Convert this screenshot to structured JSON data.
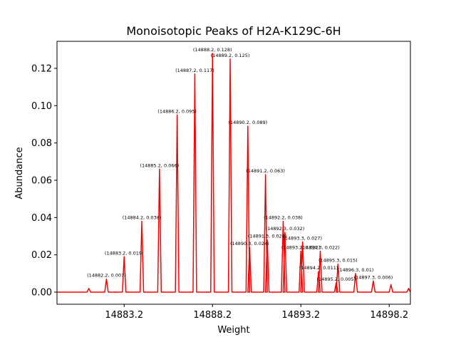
{
  "chart_data": {
    "type": "line",
    "title": "Monoisotopic Peaks of H2A-K129C-6H",
    "xlabel": "Weight",
    "ylabel": "Abundance",
    "xlim": [
      14879.4,
      14899.4
    ],
    "ylim": [
      -0.0065,
      0.1345
    ],
    "x_ticks": [
      14883.2,
      14888.2,
      14893.2,
      14898.2
    ],
    "x_tick_labels": [
      "14883.2",
      "14888.2",
      "14893.2",
      "14898.2"
    ],
    "y_ticks": [
      0.0,
      0.02,
      0.04,
      0.06,
      0.08,
      0.1,
      0.12
    ],
    "y_tick_labels": [
      "0.00",
      "0.02",
      "0.04",
      "0.06",
      "0.08",
      "0.10",
      "0.12"
    ],
    "grid": false,
    "line_color": "#ff0000",
    "peak_halfwidth": 0.1,
    "series": [
      {
        "peaks": [
          {
            "x": 14881.2,
            "y": 0.002
          },
          {
            "x": 14882.2,
            "y": 0.007
          },
          {
            "x": 14883.2,
            "y": 0.019
          },
          {
            "x": 14884.2,
            "y": 0.038
          },
          {
            "x": 14885.2,
            "y": 0.066
          },
          {
            "x": 14886.2,
            "y": 0.095
          },
          {
            "x": 14887.2,
            "y": 0.117
          },
          {
            "x": 14888.2,
            "y": 0.128
          },
          {
            "x": 14889.2,
            "y": 0.125
          },
          {
            "x": 14890.2,
            "y": 0.089
          },
          {
            "x": 14890.3,
            "y": 0.024
          },
          {
            "x": 14891.2,
            "y": 0.063
          },
          {
            "x": 14891.3,
            "y": 0.028
          },
          {
            "x": 14892.2,
            "y": 0.038
          },
          {
            "x": 14892.3,
            "y": 0.032
          },
          {
            "x": 14893.2,
            "y": 0.022
          },
          {
            "x": 14893.3,
            "y": 0.027
          },
          {
            "x": 14894.2,
            "y": 0.011
          },
          {
            "x": 14894.3,
            "y": 0.022
          },
          {
            "x": 14895.2,
            "y": 0.005
          },
          {
            "x": 14895.3,
            "y": 0.015
          },
          {
            "x": 14896.3,
            "y": 0.01
          },
          {
            "x": 14897.3,
            "y": 0.006
          },
          {
            "x": 14898.3,
            "y": 0.004
          },
          {
            "x": 14899.3,
            "y": 0.002
          }
        ]
      }
    ],
    "annotations": [
      {
        "text": "(14882.2, 0.007)",
        "x": 14882.2,
        "y": 0.007
      },
      {
        "text": "(14883.2, 0.019)",
        "x": 14883.2,
        "y": 0.019
      },
      {
        "text": "(14884.2, 0.038)",
        "x": 14884.2,
        "y": 0.038
      },
      {
        "text": "(14885.2, 0.066)",
        "x": 14885.2,
        "y": 0.066
      },
      {
        "text": "(14886.2, 0.095)",
        "x": 14886.2,
        "y": 0.095
      },
      {
        "text": "(14887.2, 0.117)",
        "x": 14887.2,
        "y": 0.117
      },
      {
        "text": "(14888.2, 0.128)",
        "x": 14888.2,
        "y": 0.128
      },
      {
        "text": "(14889.2, 0.125)",
        "x": 14889.2,
        "y": 0.125
      },
      {
        "text": "(14890.2, 0.089)",
        "x": 14890.2,
        "y": 0.089
      },
      {
        "text": "(14890.3, 0.024)",
        "x": 14890.3,
        "y": 0.024
      },
      {
        "text": "(14891.2, 0.063)",
        "x": 14891.2,
        "y": 0.063
      },
      {
        "text": "(14891.3, 0.028)",
        "x": 14891.3,
        "y": 0.028
      },
      {
        "text": "(14892.2, 0.038)",
        "x": 14892.2,
        "y": 0.038
      },
      {
        "text": "(14892.3, 0.032)",
        "x": 14892.3,
        "y": 0.032
      },
      {
        "text": "(14893.2, 0.022)",
        "x": 14893.2,
        "y": 0.022
      },
      {
        "text": "(14893.3, 0.027)",
        "x": 14893.3,
        "y": 0.027
      },
      {
        "text": "(14894.2, 0.011)",
        "x": 14894.2,
        "y": 0.011
      },
      {
        "text": "(14894.3, 0.022)",
        "x": 14894.3,
        "y": 0.022
      },
      {
        "text": "(14895.2, 0.005)",
        "x": 14895.2,
        "y": 0.005
      },
      {
        "text": "(14895.3, 0.015)",
        "x": 14895.3,
        "y": 0.015
      },
      {
        "text": "(14896.3, 0.01)",
        "x": 14896.3,
        "y": 0.01
      },
      {
        "text": "(14897.3, 0.006)",
        "x": 14897.3,
        "y": 0.006
      }
    ]
  }
}
